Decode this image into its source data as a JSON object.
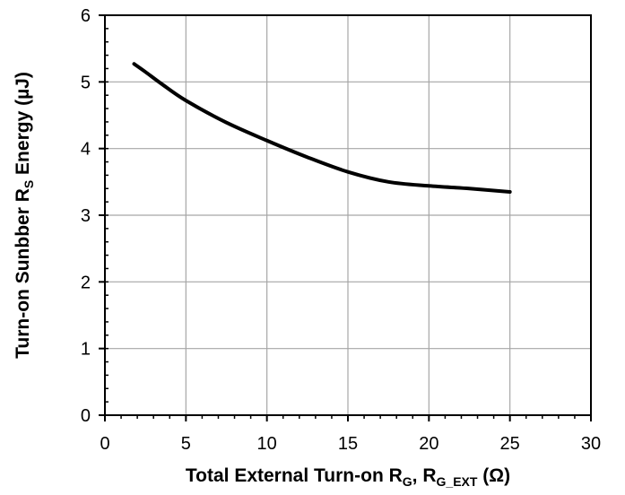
{
  "chart_data": {
    "type": "line",
    "title": "",
    "xlabel": {
      "parts": [
        "Total External Turn-on R",
        "G",
        ", R",
        "G_EXT",
        " (Ω)"
      ]
    },
    "ylabel": {
      "parts": [
        "Turn-on Sunbber R",
        "S",
        " Energy (µJ)"
      ]
    },
    "xlim": [
      0,
      30
    ],
    "ylim": [
      0,
      6
    ],
    "x_ticks": [
      0,
      5,
      10,
      15,
      20,
      25,
      30
    ],
    "y_ticks": [
      0,
      1,
      2,
      3,
      4,
      5,
      6
    ],
    "x_minor_step": 1,
    "y_minor_step": 0.2,
    "grid": true,
    "colors": {
      "line": "#000000",
      "grid": "#a6a6a6",
      "axis": "#000000"
    },
    "series": [
      {
        "x": [
          1.8,
          2.5,
          3.5,
          5,
          7.5,
          10,
          12.5,
          15,
          17.5,
          20,
          22.5,
          25
        ],
        "values": [
          5.27,
          5.15,
          4.97,
          4.72,
          4.39,
          4.12,
          3.87,
          3.65,
          3.5,
          3.44,
          3.4,
          3.35
        ]
      }
    ]
  }
}
